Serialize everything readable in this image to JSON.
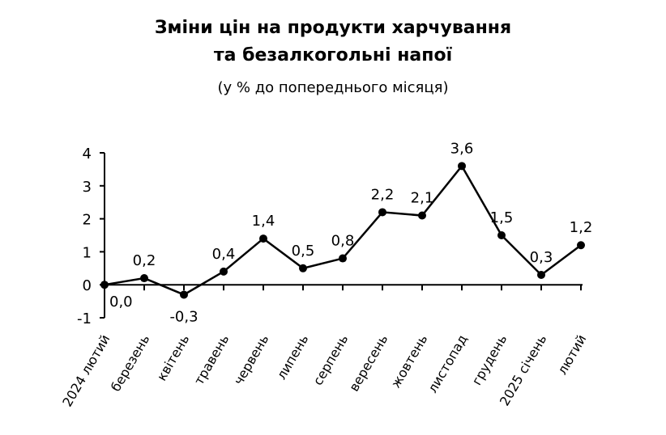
{
  "chart_data": {
    "type": "line",
    "title_line1": "Зміни цін на продукти харчування",
    "title_line2": "та безалкогольні напої",
    "subtitle": "(у % до попереднього місяця)",
    "categories": [
      "2024 лютий",
      "березень",
      "квітень",
      "травень",
      "червень",
      "липень",
      "серпень",
      "вересень",
      "жовтень",
      "листопад",
      "грудень",
      "2025 січень",
      "лютий"
    ],
    "values": [
      0.0,
      0.2,
      -0.3,
      0.4,
      1.4,
      0.5,
      0.8,
      2.2,
      2.1,
      3.6,
      1.5,
      0.3,
      1.2
    ],
    "data_labels": [
      "0,0",
      "0,2",
      "-0,3",
      "0,4",
      "1,4",
      "0,5",
      "0,8",
      "2,2",
      "2,1",
      "3,6",
      "1,5",
      "0,3",
      "1,2"
    ],
    "ylim": [
      -1,
      4
    ],
    "yticks": [
      -1,
      0,
      1,
      2,
      3,
      4
    ],
    "grid": false,
    "line_color": "#000000"
  }
}
